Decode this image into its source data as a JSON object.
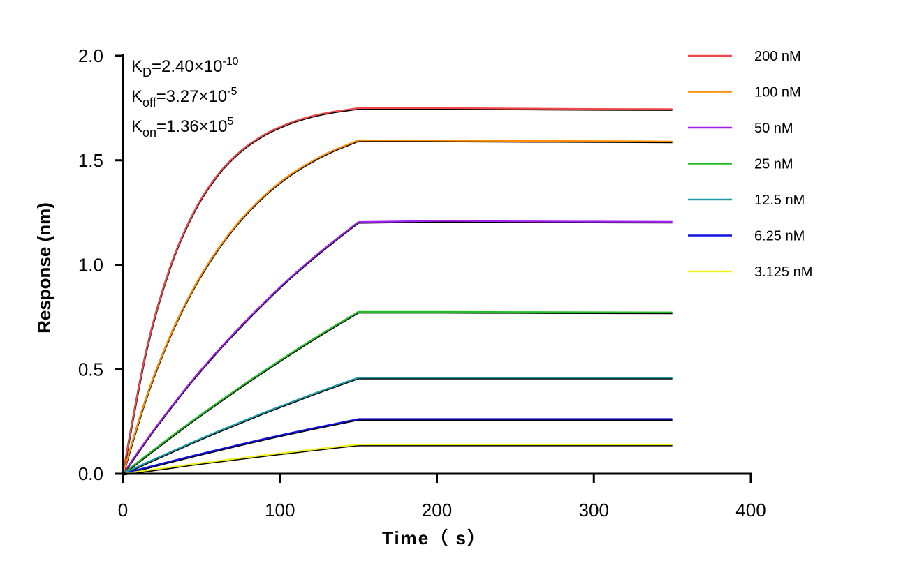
{
  "chart_data": {
    "type": "line",
    "xlabel": "Time（ s）",
    "ylabel": "Response (nm)",
    "xlim": [
      0,
      400
    ],
    "ylim": [
      0,
      2.0
    ],
    "xticks": [
      "0",
      "100",
      "200",
      "300",
      "400"
    ],
    "yticks": [
      "0.0",
      "0.5",
      "1.0",
      "1.5",
      "2.0"
    ],
    "grid": false,
    "legend_position": "right",
    "fit_color": "#000000",
    "annotations": [
      {
        "base": "K",
        "sub": "D",
        "text": "=2.40×10",
        "sup": "-10"
      },
      {
        "base": "K",
        "sub": "off",
        "text": "=3.27×10",
        "sup": "-5"
      },
      {
        "base": "K",
        "sub": "on",
        "text": "=1.36×10",
        "sup": "5"
      }
    ],
    "x": [
      0,
      15,
      30,
      45,
      60,
      75,
      90,
      105,
      120,
      135,
      150,
      200,
      250,
      300,
      350
    ],
    "series": [
      {
        "name": "200 nM",
        "color": "#f04848",
        "values": [
          0,
          0.593,
          0.988,
          1.251,
          1.428,
          1.545,
          1.623,
          1.675,
          1.711,
          1.734,
          1.75,
          1.75,
          1.748,
          1.746,
          1.745
        ]
      },
      {
        "name": "100 nM",
        "color": "#ff8c00",
        "values": [
          0,
          0.367,
          0.658,
          0.888,
          1.07,
          1.216,
          1.331,
          1.423,
          1.494,
          1.551,
          1.596,
          1.595,
          1.593,
          1.592,
          1.59
        ]
      },
      {
        "name": "50 nM",
        "color": "#a020f0",
        "values": [
          0,
          0.162,
          0.313,
          0.455,
          0.585,
          0.706,
          0.82,
          0.928,
          1.026,
          1.118,
          1.205,
          1.21,
          1.208,
          1.207,
          1.206
        ]
      },
      {
        "name": "25 nM",
        "color": "#22bb22",
        "values": [
          0,
          0.088,
          0.174,
          0.258,
          0.338,
          0.417,
          0.493,
          0.567,
          0.639,
          0.708,
          0.775,
          0.775,
          0.774,
          0.773,
          0.772
        ]
      },
      {
        "name": "12.5 nM",
        "color": "#1a9aa8",
        "values": [
          0,
          0.053,
          0.103,
          0.153,
          0.201,
          0.247,
          0.293,
          0.336,
          0.379,
          0.42,
          0.46,
          0.46,
          0.46,
          0.46,
          0.46
        ]
      },
      {
        "name": "6.25 nM",
        "color": "#1010e0",
        "values": [
          0,
          0.03,
          0.059,
          0.087,
          0.114,
          0.141,
          0.167,
          0.192,
          0.216,
          0.239,
          0.262,
          0.262,
          0.262,
          0.262,
          0.262
        ]
      },
      {
        "name": "3.125 nM",
        "color": "#f0f020",
        "values": [
          0,
          0.016,
          0.031,
          0.047,
          0.061,
          0.075,
          0.089,
          0.102,
          0.115,
          0.128,
          0.14,
          0.14,
          0.14,
          0.14,
          0.14
        ]
      }
    ]
  }
}
